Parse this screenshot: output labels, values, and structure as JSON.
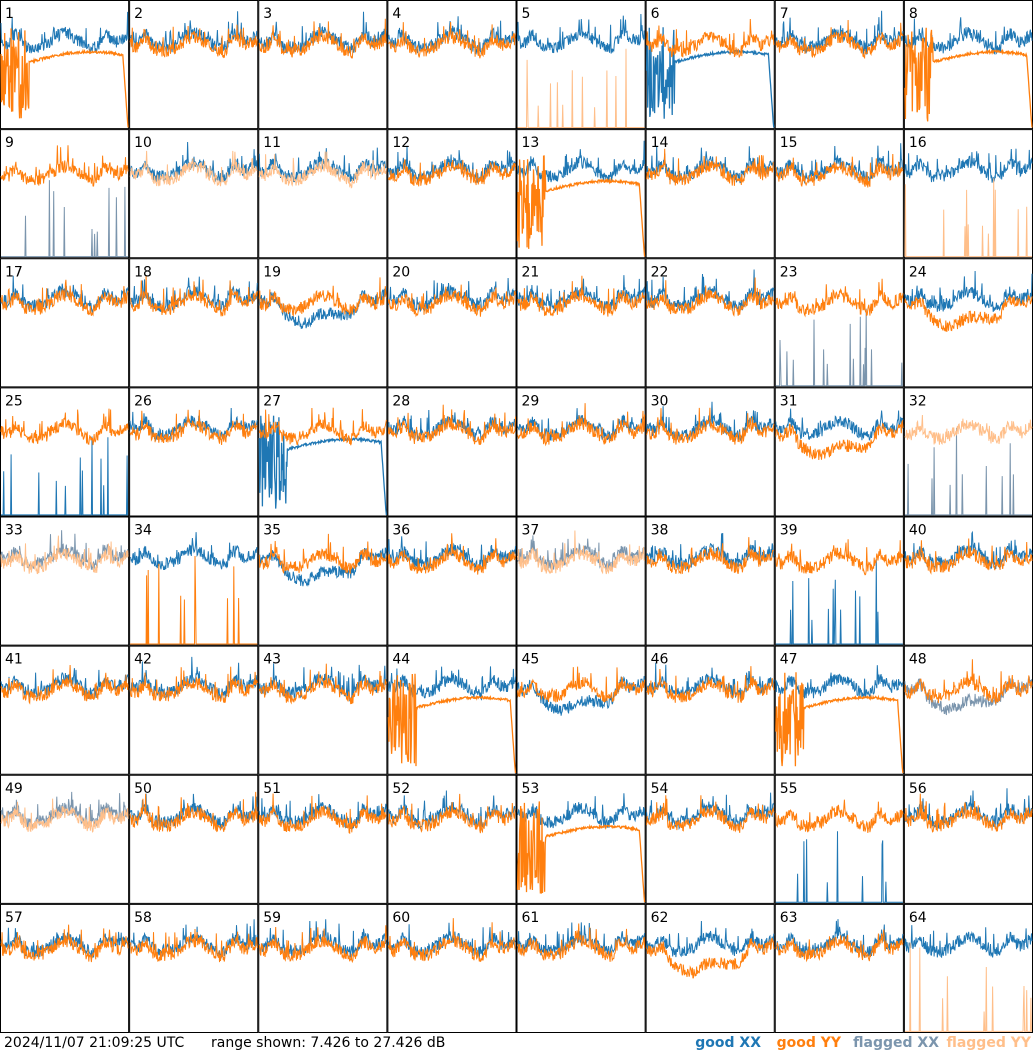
{
  "timestamp": "2024/11/07 21:09:25 UTC",
  "range_text": "range shown: 7.426 to 27.426 dB",
  "colors": {
    "good_xx": "#1f77b4",
    "good_yy": "#ff7f0e",
    "flagged_xx": "#7b95ad",
    "flagged_yy": "#ffbf8a",
    "panel_border": "#000000",
    "background": "#ffffff"
  },
  "legend": [
    {
      "key": "good_xx",
      "label": "good XX"
    },
    {
      "key": "good_yy",
      "label": "good YY"
    },
    {
      "key": "flagged_xx",
      "label": "flagged XX"
    },
    {
      "key": "flagged_yy",
      "label": "flagged YY"
    }
  ],
  "chart_data": {
    "type": "line",
    "layout": "small-multiples 8x8",
    "ylim": [
      7.426,
      27.426
    ],
    "y_unit": "dB",
    "panels": [
      {
        "id": 1,
        "xx": "good",
        "yy": "good",
        "xx_shape": "normal",
        "yy_shape": "saturated"
      },
      {
        "id": 2,
        "xx": "good",
        "yy": "good",
        "xx_shape": "normal",
        "yy_shape": "normal"
      },
      {
        "id": 3,
        "xx": "good",
        "yy": "good",
        "xx_shape": "normal",
        "yy_shape": "normal"
      },
      {
        "id": 4,
        "xx": "good",
        "yy": "good",
        "xx_shape": "normal",
        "yy_shape": "normal"
      },
      {
        "id": 5,
        "xx": "good",
        "yy": "flagged",
        "xx_shape": "normal",
        "yy_shape": "spikes"
      },
      {
        "id": 6,
        "xx": "good",
        "yy": "good",
        "xx_shape": "saturated",
        "yy_shape": "normal"
      },
      {
        "id": 7,
        "xx": "good",
        "yy": "good",
        "xx_shape": "normal",
        "yy_shape": "normal"
      },
      {
        "id": 8,
        "xx": "good",
        "yy": "good",
        "xx_shape": "normal",
        "yy_shape": "saturated"
      },
      {
        "id": 9,
        "xx": "flagged",
        "yy": "good",
        "xx_shape": "spikes",
        "yy_shape": "normal"
      },
      {
        "id": 10,
        "xx": "good",
        "yy": "flagged",
        "xx_shape": "normal",
        "yy_shape": "normal"
      },
      {
        "id": 11,
        "xx": "good",
        "yy": "flagged",
        "xx_shape": "normal",
        "yy_shape": "normal"
      },
      {
        "id": 12,
        "xx": "good",
        "yy": "good",
        "xx_shape": "normal",
        "yy_shape": "normal"
      },
      {
        "id": 13,
        "xx": "good",
        "yy": "good",
        "xx_shape": "normal",
        "yy_shape": "saturated"
      },
      {
        "id": 14,
        "xx": "good",
        "yy": "good",
        "xx_shape": "normal",
        "yy_shape": "normal"
      },
      {
        "id": 15,
        "xx": "good",
        "yy": "good",
        "xx_shape": "normal",
        "yy_shape": "normal"
      },
      {
        "id": 16,
        "xx": "good",
        "yy": "flagged",
        "xx_shape": "normal",
        "yy_shape": "spikes"
      },
      {
        "id": 17,
        "xx": "good",
        "yy": "good",
        "xx_shape": "normal",
        "yy_shape": "normal"
      },
      {
        "id": 18,
        "xx": "good",
        "yy": "good",
        "xx_shape": "normal",
        "yy_shape": "normal"
      },
      {
        "id": 19,
        "xx": "good",
        "yy": "good",
        "xx_shape": "low",
        "yy_shape": "normal"
      },
      {
        "id": 20,
        "xx": "good",
        "yy": "good",
        "xx_shape": "normal",
        "yy_shape": "normal"
      },
      {
        "id": 21,
        "xx": "good",
        "yy": "good",
        "xx_shape": "normal",
        "yy_shape": "normal"
      },
      {
        "id": 22,
        "xx": "good",
        "yy": "good",
        "xx_shape": "normal",
        "yy_shape": "normal"
      },
      {
        "id": 23,
        "xx": "flagged",
        "yy": "good",
        "xx_shape": "spikes",
        "yy_shape": "normal"
      },
      {
        "id": 24,
        "xx": "good",
        "yy": "good",
        "xx_shape": "normal",
        "yy_shape": "low"
      },
      {
        "id": 25,
        "xx": "good",
        "yy": "good",
        "xx_shape": "spikes",
        "yy_shape": "normal"
      },
      {
        "id": 26,
        "xx": "good",
        "yy": "good",
        "xx_shape": "normal",
        "yy_shape": "normal"
      },
      {
        "id": 27,
        "xx": "good",
        "yy": "good",
        "xx_shape": "saturated",
        "yy_shape": "normal"
      },
      {
        "id": 28,
        "xx": "good",
        "yy": "good",
        "xx_shape": "normal",
        "yy_shape": "normal"
      },
      {
        "id": 29,
        "xx": "good",
        "yy": "good",
        "xx_shape": "normal",
        "yy_shape": "normal"
      },
      {
        "id": 30,
        "xx": "good",
        "yy": "good",
        "xx_shape": "normal",
        "yy_shape": "normal"
      },
      {
        "id": 31,
        "xx": "good",
        "yy": "good",
        "xx_shape": "normal",
        "yy_shape": "low"
      },
      {
        "id": 32,
        "xx": "flagged",
        "yy": "flagged",
        "xx_shape": "spikes",
        "yy_shape": "normal"
      },
      {
        "id": 33,
        "xx": "flagged",
        "yy": "flagged",
        "xx_shape": "normal",
        "yy_shape": "normal"
      },
      {
        "id": 34,
        "xx": "good",
        "yy": "good",
        "xx_shape": "normal",
        "yy_shape": "spikes"
      },
      {
        "id": 35,
        "xx": "good",
        "yy": "good",
        "xx_shape": "low",
        "yy_shape": "normal"
      },
      {
        "id": 36,
        "xx": "good",
        "yy": "good",
        "xx_shape": "normal",
        "yy_shape": "normal"
      },
      {
        "id": 37,
        "xx": "flagged",
        "yy": "flagged",
        "xx_shape": "normal",
        "yy_shape": "normal"
      },
      {
        "id": 38,
        "xx": "good",
        "yy": "good",
        "xx_shape": "normal",
        "yy_shape": "normal"
      },
      {
        "id": 39,
        "xx": "good",
        "yy": "good",
        "xx_shape": "spikes",
        "yy_shape": "normal"
      },
      {
        "id": 40,
        "xx": "good",
        "yy": "good",
        "xx_shape": "normal",
        "yy_shape": "normal"
      },
      {
        "id": 41,
        "xx": "good",
        "yy": "good",
        "xx_shape": "normal",
        "yy_shape": "normal"
      },
      {
        "id": 42,
        "xx": "good",
        "yy": "good",
        "xx_shape": "normal",
        "yy_shape": "normal"
      },
      {
        "id": 43,
        "xx": "good",
        "yy": "good",
        "xx_shape": "normal",
        "yy_shape": "normal"
      },
      {
        "id": 44,
        "xx": "good",
        "yy": "good",
        "xx_shape": "normal",
        "yy_shape": "saturated"
      },
      {
        "id": 45,
        "xx": "good",
        "yy": "good",
        "xx_shape": "low",
        "yy_shape": "normal"
      },
      {
        "id": 46,
        "xx": "good",
        "yy": "good",
        "xx_shape": "normal",
        "yy_shape": "normal"
      },
      {
        "id": 47,
        "xx": "good",
        "yy": "good",
        "xx_shape": "normal",
        "yy_shape": "saturated"
      },
      {
        "id": 48,
        "xx": "flagged",
        "yy": "good",
        "xx_shape": "low",
        "yy_shape": "normal"
      },
      {
        "id": 49,
        "xx": "flagged",
        "yy": "flagged",
        "xx_shape": "normal",
        "yy_shape": "normal"
      },
      {
        "id": 50,
        "xx": "good",
        "yy": "good",
        "xx_shape": "normal",
        "yy_shape": "normal"
      },
      {
        "id": 51,
        "xx": "good",
        "yy": "good",
        "xx_shape": "normal",
        "yy_shape": "normal"
      },
      {
        "id": 52,
        "xx": "good",
        "yy": "good",
        "xx_shape": "normal",
        "yy_shape": "normal"
      },
      {
        "id": 53,
        "xx": "good",
        "yy": "good",
        "xx_shape": "normal",
        "yy_shape": "saturated"
      },
      {
        "id": 54,
        "xx": "good",
        "yy": "good",
        "xx_shape": "normal",
        "yy_shape": "normal"
      },
      {
        "id": 55,
        "xx": "good",
        "yy": "good",
        "xx_shape": "spikes",
        "yy_shape": "normal"
      },
      {
        "id": 56,
        "xx": "good",
        "yy": "good",
        "xx_shape": "normal",
        "yy_shape": "normal"
      },
      {
        "id": 57,
        "xx": "good",
        "yy": "good",
        "xx_shape": "normal",
        "yy_shape": "normal"
      },
      {
        "id": 58,
        "xx": "good",
        "yy": "good",
        "xx_shape": "normal",
        "yy_shape": "normal"
      },
      {
        "id": 59,
        "xx": "good",
        "yy": "good",
        "xx_shape": "normal",
        "yy_shape": "normal"
      },
      {
        "id": 60,
        "xx": "good",
        "yy": "good",
        "xx_shape": "normal",
        "yy_shape": "normal"
      },
      {
        "id": 61,
        "xx": "good",
        "yy": "good",
        "xx_shape": "normal",
        "yy_shape": "normal"
      },
      {
        "id": 62,
        "xx": "good",
        "yy": "good",
        "xx_shape": "normal",
        "yy_shape": "low"
      },
      {
        "id": 63,
        "xx": "good",
        "yy": "good",
        "xx_shape": "normal",
        "yy_shape": "normal"
      },
      {
        "id": 64,
        "xx": "good",
        "yy": "flagged",
        "xx_shape": "normal",
        "yy_shape": "spikes"
      }
    ]
  }
}
